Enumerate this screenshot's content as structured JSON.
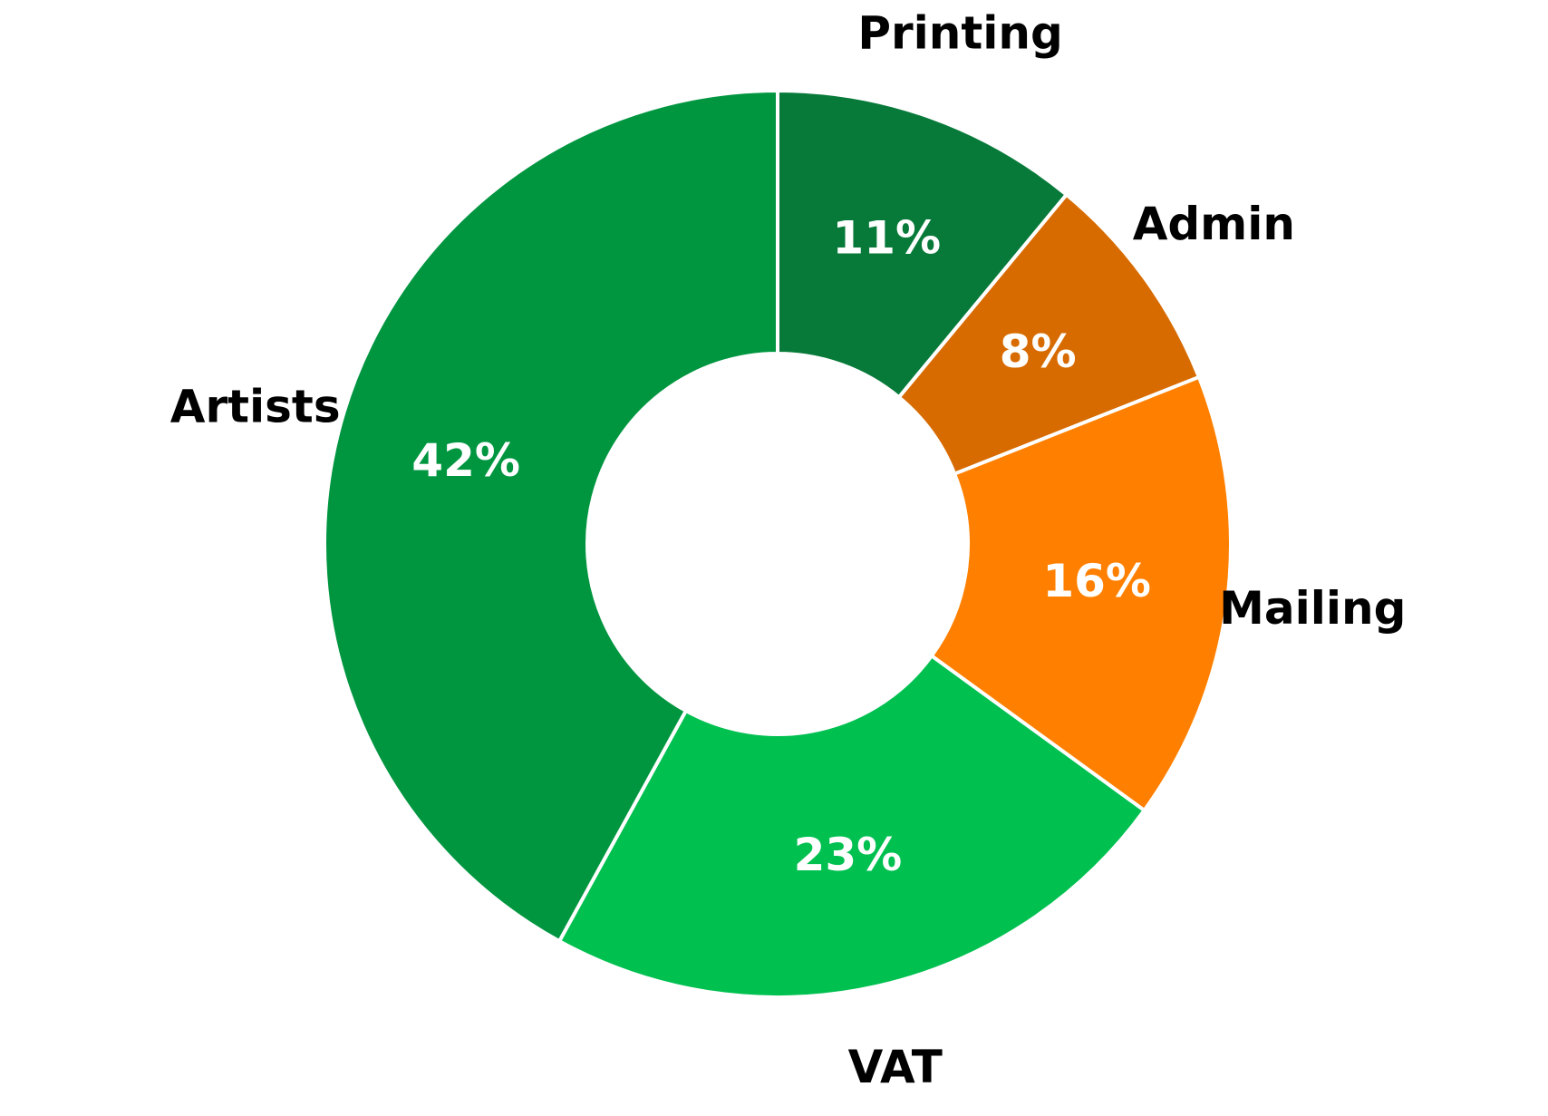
{
  "chart_data": {
    "type": "donut",
    "categories": [
      "Printing",
      "Admin",
      "Mailing",
      "VAT",
      "Artists"
    ],
    "values": [
      11,
      8,
      16,
      23,
      42
    ],
    "value_labels": [
      "11%",
      "8%",
      "16%",
      "23%",
      "42%"
    ],
    "colors": [
      "#077a3a",
      "#d86b00",
      "#ff8000",
      "#00c050",
      "#009640"
    ]
  }
}
